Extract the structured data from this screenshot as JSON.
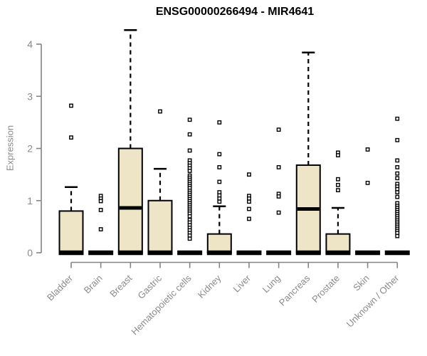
{
  "page": {
    "title": "ENSG00000266494 - MIR4641"
  },
  "chart_data": {
    "type": "boxplot",
    "title": "ENSG00000266494 - MIR4641",
    "ylabel": "Expression",
    "xlabel": "",
    "ylim": [
      0,
      4.4
    ],
    "yticks": [
      0,
      1,
      2,
      3,
      4
    ],
    "grid": false,
    "legend": null,
    "colors": {
      "box_fill": "#EDE5C6",
      "box_stroke": "#000000",
      "axis": "#848484",
      "tick_text": "#8A8A8A",
      "title_text": "#000000",
      "outlier_fill": "#FFFFFF"
    },
    "categories": [
      "Bladder",
      "Brain",
      "Breast",
      "Gastric",
      "Hematopoietic cells",
      "Kidney",
      "Liver",
      "Lung",
      "Pancreas",
      "Prostate",
      "Skin",
      "Unknown / Other"
    ],
    "boxes": [
      {
        "category": "Bladder",
        "q1": 0,
        "median": 0,
        "q3": 0.8,
        "whisker_low": 0,
        "whisker_high": 1.26,
        "outliers": [
          2.82,
          2.21
        ]
      },
      {
        "category": "Brain",
        "q1": 0,
        "median": 0,
        "q3": 0,
        "whisker_low": 0,
        "whisker_high": 0,
        "outliers": [
          1.09,
          1.04,
          0.99,
          0.82,
          0.45
        ]
      },
      {
        "category": "Breast",
        "q1": 0,
        "median": 0.86,
        "q3": 2.0,
        "whisker_low": 0,
        "whisker_high": 4.27,
        "outliers": []
      },
      {
        "category": "Gastric",
        "q1": 0,
        "median": 0,
        "q3": 1.0,
        "whisker_low": 0,
        "whisker_high": 1.61,
        "outliers": [
          2.71
        ]
      },
      {
        "category": "Hematopoietic cells",
        "q1": 0,
        "median": 0,
        "q3": 0,
        "whisker_low": 0,
        "whisker_high": 0,
        "outliers": [
          2.55,
          2.27,
          1.96,
          1.77,
          1.72,
          1.67,
          1.62,
          1.57,
          1.48,
          1.44,
          1.4,
          1.36,
          1.32,
          1.28,
          1.24,
          1.19,
          1.15,
          1.11,
          1.07,
          1.03,
          0.99,
          0.95,
          0.91,
          0.87,
          0.83,
          0.79,
          0.75,
          0.7,
          0.63,
          0.58,
          0.53,
          0.48,
          0.43,
          0.38,
          0.33,
          0.27
        ]
      },
      {
        "category": "Kidney",
        "q1": 0,
        "median": 0,
        "q3": 0.36,
        "whisker_low": 0,
        "whisker_high": 0.89,
        "outliers": [
          2.5,
          1.89,
          1.64,
          1.36,
          1.16,
          1.1,
          1.04,
          0.98
        ]
      },
      {
        "category": "Liver",
        "q1": 0,
        "median": 0,
        "q3": 0,
        "whisker_low": 0,
        "whisker_high": 0,
        "outliers": [
          1.5,
          1.09,
          1.04,
          0.98,
          0.84,
          0.65
        ]
      },
      {
        "category": "Lung",
        "q1": 0,
        "median": 0,
        "q3": 0,
        "whisker_low": 0,
        "whisker_high": 0,
        "outliers": [
          2.36,
          1.64,
          1.13,
          1.08,
          0.77
        ]
      },
      {
        "category": "Pancreas",
        "q1": 0,
        "median": 0.84,
        "q3": 1.68,
        "whisker_low": 0,
        "whisker_high": 3.84,
        "outliers": []
      },
      {
        "category": "Prostate",
        "q1": 0,
        "median": 0,
        "q3": 0.36,
        "whisker_low": 0,
        "whisker_high": 0.86,
        "outliers": [
          1.92,
          1.87,
          1.41,
          1.3,
          1.2
        ]
      },
      {
        "category": "Skin",
        "q1": 0,
        "median": 0,
        "q3": 0,
        "whisker_low": 0,
        "whisker_high": 0,
        "outliers": [
          1.98,
          1.34
        ]
      },
      {
        "category": "Unknown / Other",
        "q1": 0,
        "median": 0,
        "q3": 0,
        "whisker_low": 0,
        "whisker_high": 0,
        "outliers": [
          2.57,
          2.16,
          1.77,
          1.64,
          1.52,
          1.43,
          1.32,
          1.27,
          1.22,
          1.16,
          1.07,
          0.95,
          0.9,
          0.86,
          0.82,
          0.78,
          0.74,
          0.7,
          0.66,
          0.62,
          0.58,
          0.54,
          0.5,
          0.46,
          0.42,
          0.38,
          0.32
        ]
      }
    ]
  }
}
